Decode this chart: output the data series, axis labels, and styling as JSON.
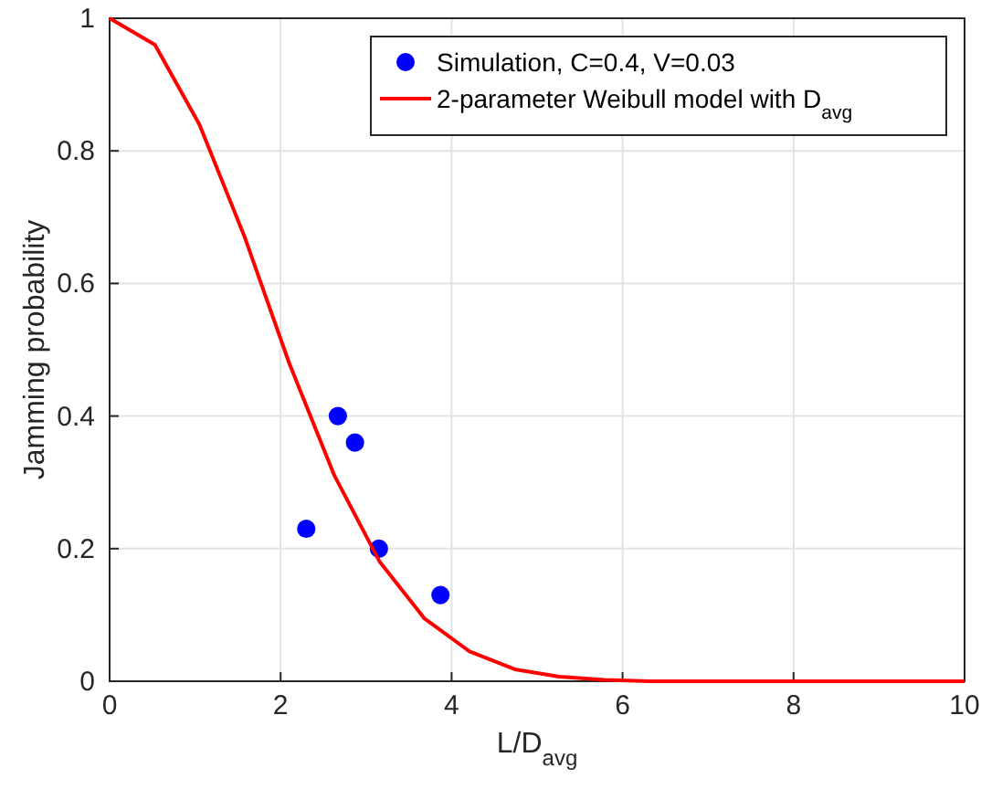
{
  "chart_data": {
    "type": "scatter",
    "xlabel": "L/D$_{avg}$",
    "ylabel": "Jamming probability",
    "xlim": [
      0,
      10
    ],
    "ylim": [
      0,
      1
    ],
    "xticks": [
      0,
      2,
      4,
      6,
      8,
      10
    ],
    "yticks": [
      0,
      0.2,
      0.4,
      0.6,
      0.8,
      1
    ],
    "grid": true,
    "legend": "top right",
    "series": [
      {
        "name": "Simulation, C=0.4, V=0.03",
        "color": "#0000ff",
        "marker": "circle",
        "x": [
          2.3,
          2.67,
          2.87,
          3.15,
          3.87
        ],
        "values": [
          0.23,
          0.4,
          0.36,
          0.2,
          0.13
        ]
      },
      {
        "name": "2-parameter Weibull model with D$_{avg}$",
        "color": "#ff0000",
        "type": "line",
        "marker": "none",
        "line_style": "solid",
        "x": [
          0,
          0.53,
          1.05,
          1.58,
          2.1,
          2.63,
          3.16,
          3.68,
          4.21,
          4.74,
          5.26,
          5.79,
          6.32,
          6.84,
          7.37,
          7.89,
          8.42,
          8.95,
          9.47,
          10
        ],
        "values": [
          1,
          0.96,
          0.84,
          0.67,
          0.48,
          0.31,
          0.18,
          0.095,
          0.045,
          0.018,
          0.007,
          0.002,
          0,
          0,
          0,
          0,
          0,
          0,
          0,
          0
        ]
      }
    ]
  }
}
